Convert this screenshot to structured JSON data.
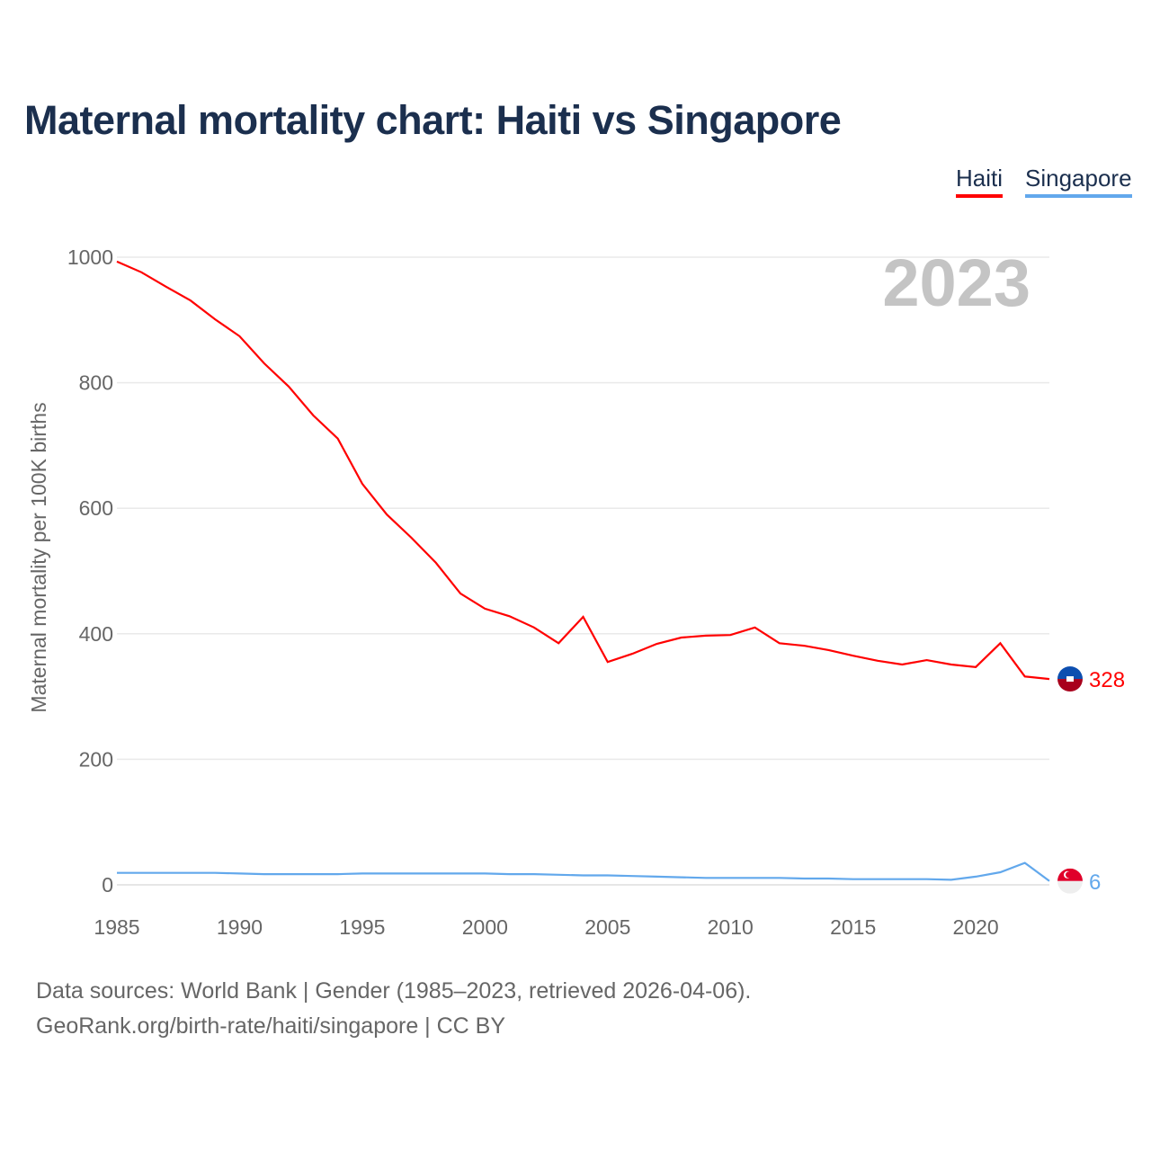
{
  "title": "Maternal mortality chart: Haiti vs Singapore",
  "legend": [
    {
      "label": "Haiti",
      "color": "#ff0000"
    },
    {
      "label": "Singapore",
      "color": "#62a8ec"
    }
  ],
  "footer": {
    "line1": "Data sources: World Bank | Gender (1985–2023, retrieved 2026-04-06).",
    "line2": "GeoRank.org/birth-rate/haiti/singapore | CC BY"
  },
  "chart_data": {
    "type": "line",
    "title": "Maternal mortality chart: Haiti vs Singapore",
    "year_label": "2023",
    "ylabel": "Maternal mortality per 100K births",
    "xlabel": "",
    "xlim": [
      1985,
      2023
    ],
    "ylim": [
      0,
      1000
    ],
    "x_ticks": [
      1985,
      1990,
      1995,
      2000,
      2005,
      2010,
      2015,
      2020
    ],
    "y_ticks": [
      0,
      200,
      400,
      600,
      800,
      1000
    ],
    "grid": true,
    "legend_position": "top-right",
    "x": [
      1985,
      1986,
      1987,
      1988,
      1989,
      1990,
      1991,
      1992,
      1993,
      1994,
      1995,
      1996,
      1997,
      1998,
      1999,
      2000,
      2001,
      2002,
      2003,
      2004,
      2005,
      2006,
      2007,
      2008,
      2009,
      2010,
      2011,
      2012,
      2013,
      2014,
      2015,
      2016,
      2017,
      2018,
      2019,
      2020,
      2021,
      2022,
      2023
    ],
    "series": [
      {
        "name": "Haiti",
        "color": "#ff0000",
        "end_label": "328",
        "values": [
          993,
          976,
          953,
          931,
          901,
          874,
          831,
          794,
          748,
          711,
          639,
          590,
          553,
          513,
          464,
          440,
          428,
          410,
          385,
          427,
          355,
          368,
          384,
          394,
          397,
          398,
          410,
          385,
          381,
          374,
          365,
          357,
          351,
          358,
          351,
          347,
          385,
          332,
          328
        ]
      },
      {
        "name": "Singapore",
        "color": "#62a8ec",
        "end_label": "6",
        "values": [
          19,
          19,
          19,
          19,
          19,
          18,
          17,
          17,
          17,
          17,
          18,
          18,
          18,
          18,
          18,
          18,
          17,
          17,
          16,
          15,
          15,
          14,
          13,
          12,
          11,
          11,
          11,
          11,
          10,
          10,
          9,
          9,
          9,
          9,
          8,
          13,
          20,
          35,
          6
        ]
      }
    ]
  }
}
